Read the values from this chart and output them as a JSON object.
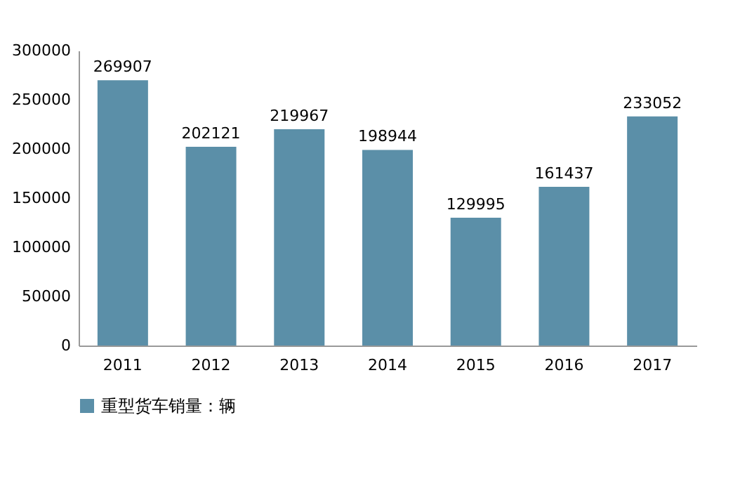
{
  "chart_data": {
    "type": "bar",
    "categories": [
      "2011",
      "2012",
      "2013",
      "2014",
      "2015",
      "2016",
      "2017"
    ],
    "series": [
      {
        "name": "重型货车销量：辆",
        "color": "#5b8fa8",
        "values": [
          269907,
          202121,
          219967,
          198944,
          129995,
          161437,
          233052
        ]
      }
    ],
    "ylim": [
      0,
      300000
    ],
    "yticks": [
      0,
      50000,
      100000,
      150000,
      200000,
      250000,
      300000
    ],
    "grid": false,
    "legend": "bottom",
    "data_labels": true
  }
}
